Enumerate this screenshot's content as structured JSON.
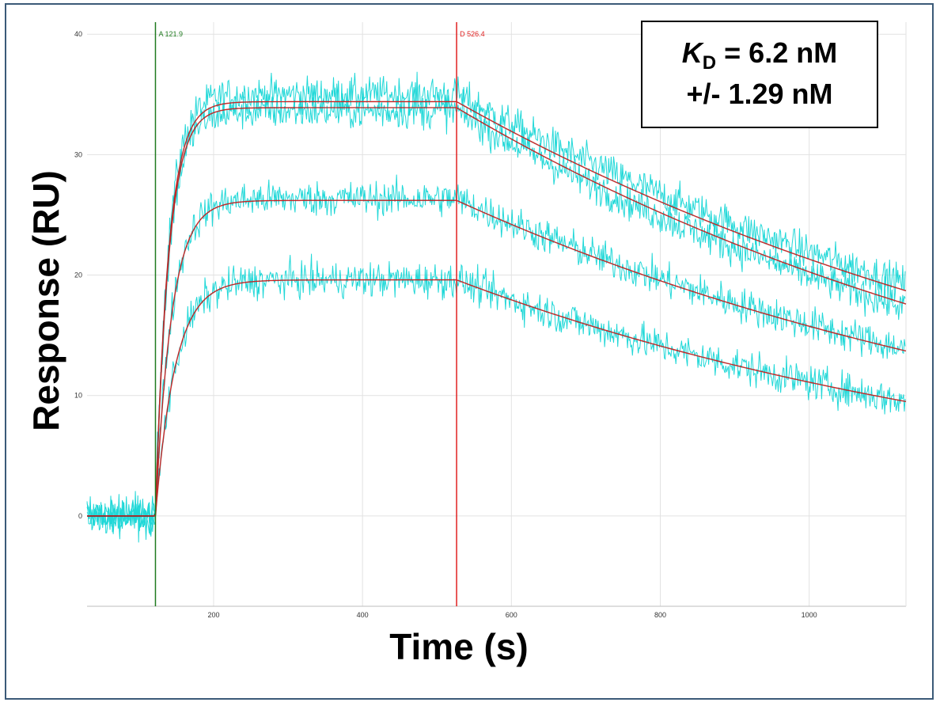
{
  "chart_data": {
    "type": "line",
    "title": "",
    "xlabel": "Time (s)",
    "ylabel": "Response (RU)",
    "xlim": [
      30,
      1130
    ],
    "ylim": [
      -7.5,
      41
    ],
    "x_ticks": [
      "200",
      "400",
      "600",
      "800",
      "1000"
    ],
    "y_ticks": [
      "0",
      "10",
      "20",
      "30",
      "40"
    ],
    "grid": true,
    "markers": [
      {
        "label": "A 121.9",
        "x": 121.9,
        "color": "#1f7a1f"
      },
      {
        "label": "D 526.4",
        "x": 526.4,
        "color": "#e02020"
      }
    ],
    "association_start": 121.9,
    "dissociation_start": 526.4,
    "fit_curves": [
      {
        "plateau": 34.4,
        "end_value": 18.7
      },
      {
        "plateau": 33.9,
        "end_value": 17.6
      },
      {
        "plateau": 26.2,
        "end_value": 13.7
      },
      {
        "plateau": 19.6,
        "end_value": 9.5
      }
    ],
    "fit_color": "#d42020",
    "data_color": "#21d8d8"
  },
  "annotation": {
    "kd_symbol": "K",
    "kd_subscript": "D",
    "kd_value": " = 6.2 nM",
    "kd_error": "+/- 1.29 nM"
  }
}
